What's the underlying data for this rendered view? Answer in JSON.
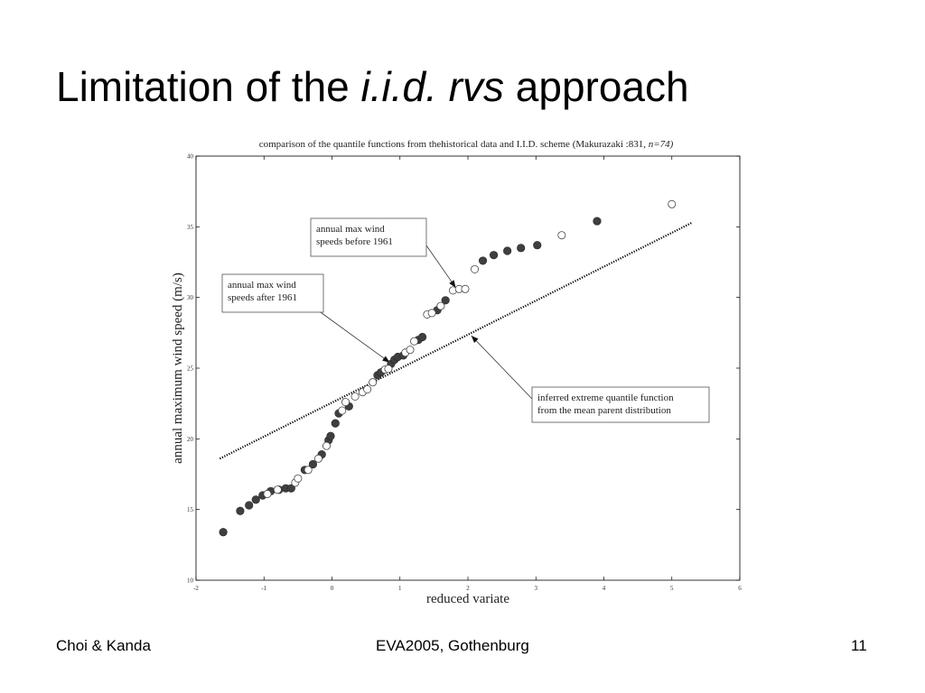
{
  "slide": {
    "title_part1": "Limitation of the ",
    "title_italic": "i.i.d. rvs",
    "title_part2": " approach"
  },
  "footer": {
    "left": "Choi & Kanda",
    "center": "EVA2005, Gothenburg",
    "right": "11"
  },
  "chart_data": {
    "type": "scatter",
    "title": "comparison of the quantile functions from thehistorical data and I.I.D. scheme (Makurazaki :831, ",
    "title_italic": "n=74)",
    "xlabel": "reduced variate",
    "ylabel": "annual maximum wind speed (m/s)",
    "xlim": [
      -2,
      6
    ],
    "ylim": [
      10,
      40
    ],
    "xticks": [
      -2,
      -1,
      0,
      1,
      2,
      3,
      4,
      5,
      6
    ],
    "yticks": [
      10,
      15,
      20,
      25,
      30,
      35,
      40
    ],
    "grid": false,
    "series": [
      {
        "key": "after",
        "marker": "filled-circle",
        "color": "#404040",
        "points": [
          [
            -1.6,
            13.4
          ],
          [
            -1.35,
            14.9
          ],
          [
            -1.22,
            15.3
          ],
          [
            -1.12,
            15.7
          ],
          [
            -1.02,
            16.0
          ],
          [
            -0.9,
            16.3
          ],
          [
            -0.78,
            16.4
          ],
          [
            -0.68,
            16.5
          ],
          [
            -0.6,
            16.5
          ],
          [
            -0.4,
            17.8
          ],
          [
            -0.28,
            18.2
          ],
          [
            -0.15,
            18.9
          ],
          [
            -0.05,
            19.9
          ],
          [
            -0.02,
            20.2
          ],
          [
            0.05,
            21.1
          ],
          [
            0.1,
            21.8
          ],
          [
            0.25,
            22.3
          ],
          [
            0.67,
            24.5
          ],
          [
            0.72,
            24.7
          ],
          [
            0.87,
            25.3
          ],
          [
            0.92,
            25.6
          ],
          [
            0.97,
            25.8
          ],
          [
            1.05,
            25.9
          ],
          [
            1.27,
            27.0
          ],
          [
            1.33,
            27.2
          ],
          [
            1.55,
            29.1
          ],
          [
            1.67,
            29.8
          ],
          [
            2.22,
            32.6
          ],
          [
            2.38,
            33.0
          ],
          [
            2.58,
            33.3
          ],
          [
            2.78,
            33.5
          ],
          [
            3.02,
            33.7
          ],
          [
            3.9,
            35.4
          ]
        ]
      },
      {
        "key": "before",
        "marker": "open-circle",
        "color": "#404040",
        "points": [
          [
            -0.95,
            16.1
          ],
          [
            -0.8,
            16.4
          ],
          [
            -0.54,
            16.9
          ],
          [
            -0.5,
            17.2
          ],
          [
            -0.35,
            17.8
          ],
          [
            -0.2,
            18.6
          ],
          [
            -0.08,
            19.5
          ],
          [
            0.15,
            22.0
          ],
          [
            0.2,
            22.6
          ],
          [
            0.34,
            23.0
          ],
          [
            0.45,
            23.3
          ],
          [
            0.52,
            23.5
          ],
          [
            0.6,
            24.0
          ],
          [
            0.78,
            24.9
          ],
          [
            0.83,
            24.95
          ],
          [
            1.08,
            26.1
          ],
          [
            1.15,
            26.3
          ],
          [
            1.21,
            26.9
          ],
          [
            1.4,
            28.8
          ],
          [
            1.47,
            28.9
          ],
          [
            1.6,
            29.4
          ],
          [
            1.78,
            30.5
          ],
          [
            1.87,
            30.6
          ],
          [
            1.96,
            30.6
          ],
          [
            2.1,
            32.0
          ],
          [
            3.38,
            34.4
          ],
          [
            5.0,
            36.6
          ]
        ]
      },
      {
        "key": "inferred",
        "marker": "dotted-line",
        "color": "#000000",
        "x_start": -1.65,
        "x_end": 5.3,
        "y_start": 18.6,
        "y_end": 35.3
      }
    ],
    "annotations": [
      {
        "key": "before",
        "lines": [
          "annual max wind",
          "speeds before 1961"
        ],
        "points_to": [
          1.82,
          30.7
        ]
      },
      {
        "key": "after",
        "lines": [
          "annual max wind",
          "speeds after 1961"
        ],
        "points_to": [
          0.85,
          25.4
        ]
      },
      {
        "key": "inferred",
        "lines": [
          "inferred extreme quantile function",
          "from the mean parent distribution"
        ],
        "points_to": [
          2.05,
          27.3
        ]
      }
    ]
  }
}
